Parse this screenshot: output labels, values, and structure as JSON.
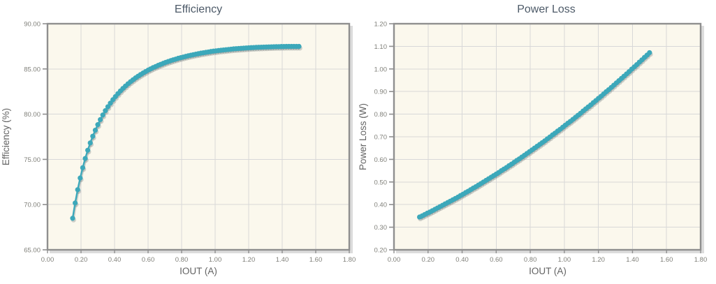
{
  "colors": {
    "series": "#3CA8BA",
    "series_shadow": "rgba(105,118,120,0.32)",
    "plot_bg": "#FBF8ED",
    "plot_border": "#8F8F8F",
    "plot_shadow": "#CDCDCD",
    "grid": "#D8D8D8",
    "tick_label": "#80807A",
    "axis_title": "#636363",
    "chart_title": "#4D5A68",
    "page_bg": "#FFFFFF"
  },
  "chart_data": [
    {
      "type": "scatter",
      "title": "Efficiency",
      "xlabel": "IOUT (A)",
      "ylabel": "Efficiency (%)",
      "xlim": [
        0,
        1.8
      ],
      "ylim": [
        65,
        90
      ],
      "grid": true,
      "legend": "none",
      "x_ticks": [
        "0.00",
        "0.20",
        "0.40",
        "0.60",
        "0.80",
        "1.00",
        "1.20",
        "1.40",
        "1.60",
        "1.80"
      ],
      "x_tick_values": [
        0,
        0.2,
        0.4,
        0.6,
        0.8,
        1.0,
        1.2,
        1.4,
        1.6,
        1.8
      ],
      "y_ticks": [
        "90.00",
        "85.00",
        "80.00",
        "75.00",
        "70.00",
        "65.00"
      ],
      "y_tick_values": [
        90,
        85,
        80,
        75,
        70,
        65
      ],
      "x": [
        0.15,
        0.165,
        0.18,
        0.195,
        0.21,
        0.225,
        0.24,
        0.255,
        0.27,
        0.285,
        0.3,
        0.315,
        0.33,
        0.345,
        0.36,
        0.375,
        0.39,
        0.405,
        0.42,
        0.435,
        0.45,
        0.465,
        0.48,
        0.495,
        0.51,
        0.525,
        0.54,
        0.555,
        0.57,
        0.585,
        0.6,
        0.615,
        0.63,
        0.645,
        0.66,
        0.675,
        0.69,
        0.705,
        0.72,
        0.735,
        0.75,
        0.765,
        0.78,
        0.795,
        0.81,
        0.825,
        0.84,
        0.855,
        0.87,
        0.885,
        0.9,
        0.915,
        0.93,
        0.945,
        0.96,
        0.975,
        0.99,
        1.005,
        1.02,
        1.035,
        1.05,
        1.065,
        1.08,
        1.095,
        1.11,
        1.125,
        1.14,
        1.155,
        1.17,
        1.185,
        1.2,
        1.215,
        1.23,
        1.245,
        1.26,
        1.275,
        1.29,
        1.305,
        1.32,
        1.335,
        1.35,
        1.365,
        1.38,
        1.395,
        1.41,
        1.425,
        1.44,
        1.455,
        1.47,
        1.485,
        1.5
      ],
      "y": [
        68.49,
        70.18,
        71.65,
        72.94,
        74.08,
        75.1,
        76.01,
        76.82,
        77.56,
        78.23,
        78.84,
        79.4,
        79.91,
        80.39,
        80.82,
        81.22,
        81.6,
        81.94,
        82.27,
        82.57,
        82.85,
        83.11,
        83.36,
        83.59,
        83.8,
        84.01,
        84.2,
        84.38,
        84.55,
        84.71,
        84.87,
        85.01,
        85.15,
        85.27,
        85.4,
        85.51,
        85.62,
        85.73,
        85.83,
        85.92,
        86.01,
        86.09,
        86.18,
        86.25,
        86.32,
        86.39,
        86.46,
        86.52,
        86.58,
        86.64,
        86.69,
        86.75,
        86.79,
        86.84,
        86.88,
        86.93,
        86.97,
        87.0,
        87.04,
        87.07,
        87.1,
        87.13,
        87.16,
        87.19,
        87.22,
        87.24,
        87.26,
        87.28,
        87.3,
        87.32,
        87.34,
        87.36,
        87.37,
        87.39,
        87.4,
        87.41,
        87.42,
        87.43,
        87.44,
        87.45,
        87.46,
        87.47,
        87.47,
        87.48,
        87.48,
        87.49,
        87.49,
        87.49,
        87.49,
        87.49,
        87.49
      ]
    },
    {
      "type": "scatter",
      "title": "Power Loss",
      "xlabel": "IOUT (A)",
      "ylabel": "Power Loss (W)",
      "xlim": [
        0,
        1.8
      ],
      "ylim": [
        0.2,
        1.2
      ],
      "grid": true,
      "legend": "none",
      "x_ticks": [
        "0.00",
        "0.20",
        "0.40",
        "0.60",
        "0.80",
        "1.00",
        "1.20",
        "1.40",
        "1.60",
        "1.80"
      ],
      "x_tick_values": [
        0,
        0.2,
        0.4,
        0.6,
        0.8,
        1.0,
        1.2,
        1.4,
        1.6,
        1.8
      ],
      "y_ticks": [
        "1.20",
        "1.10",
        "1.00",
        "0.90",
        "0.80",
        "0.70",
        "0.60",
        "0.50",
        "0.40",
        "0.30",
        "0.20"
      ],
      "y_tick_values": [
        1.2,
        1.1,
        1.0,
        0.9,
        0.8,
        0.7,
        0.6,
        0.5,
        0.4,
        0.3,
        0.2
      ],
      "x": [
        0.15,
        0.165,
        0.18,
        0.195,
        0.21,
        0.225,
        0.24,
        0.255,
        0.27,
        0.285,
        0.3,
        0.315,
        0.33,
        0.345,
        0.36,
        0.375,
        0.39,
        0.405,
        0.42,
        0.435,
        0.45,
        0.465,
        0.48,
        0.495,
        0.51,
        0.525,
        0.54,
        0.555,
        0.57,
        0.585,
        0.6,
        0.615,
        0.63,
        0.645,
        0.66,
        0.675,
        0.69,
        0.705,
        0.72,
        0.735,
        0.75,
        0.765,
        0.78,
        0.795,
        0.81,
        0.825,
        0.84,
        0.855,
        0.87,
        0.885,
        0.9,
        0.915,
        0.93,
        0.945,
        0.96,
        0.975,
        0.99,
        1.005,
        1.02,
        1.035,
        1.05,
        1.065,
        1.08,
        1.095,
        1.11,
        1.125,
        1.14,
        1.155,
        1.17,
        1.185,
        1.2,
        1.215,
        1.23,
        1.245,
        1.26,
        1.275,
        1.29,
        1.305,
        1.32,
        1.335,
        1.35,
        1.365,
        1.38,
        1.395,
        1.41,
        1.425,
        1.44,
        1.455,
        1.47,
        1.485,
        1.5
      ],
      "y": [
        0.345,
        0.35,
        0.356,
        0.362,
        0.367,
        0.373,
        0.379,
        0.385,
        0.391,
        0.397,
        0.403,
        0.409,
        0.415,
        0.421,
        0.427,
        0.433,
        0.44,
        0.446,
        0.453,
        0.459,
        0.466,
        0.473,
        0.479,
        0.486,
        0.493,
        0.5,
        0.507,
        0.514,
        0.521,
        0.528,
        0.535,
        0.542,
        0.55,
        0.557,
        0.564,
        0.572,
        0.579,
        0.587,
        0.595,
        0.602,
        0.61,
        0.618,
        0.626,
        0.634,
        0.642,
        0.65,
        0.658,
        0.666,
        0.674,
        0.682,
        0.691,
        0.699,
        0.708,
        0.716,
        0.725,
        0.733,
        0.742,
        0.751,
        0.76,
        0.768,
        0.777,
        0.786,
        0.795,
        0.804,
        0.814,
        0.823,
        0.832,
        0.841,
        0.851,
        0.86,
        0.87,
        0.879,
        0.889,
        0.899,
        0.908,
        0.918,
        0.928,
        0.938,
        0.948,
        0.958,
        0.968,
        0.978,
        0.988,
        0.999,
        1.009,
        1.019,
        1.03,
        1.04,
        1.051,
        1.061,
        1.072
      ]
    }
  ]
}
